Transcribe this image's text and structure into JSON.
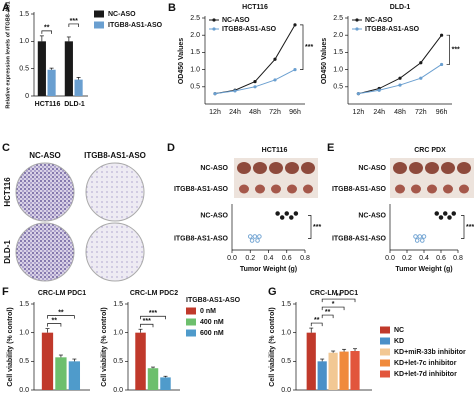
{
  "chart_data": [
    {
      "panel": "A",
      "type": "bar",
      "categories": [
        "HCT116",
        "DLD-1"
      ],
      "series": [
        {
          "name": "NC-ASO",
          "color": "#1a1a1a",
          "values": [
            1.0,
            1.0
          ],
          "errors": [
            0.1,
            0.08
          ]
        },
        {
          "name": "ITGB8-AS1-ASO",
          "color": "#6a9fd0",
          "values": [
            0.48,
            0.3
          ],
          "errors": [
            0.03,
            0.04
          ]
        }
      ],
      "ylabel": "Relative expression levels of ITGB8-AS1",
      "ylim": [
        0,
        1.5
      ],
      "yticks": [
        0,
        0.5,
        {
          "value": 1,
          "label": "1.0"
        },
        1.5
      ],
      "brackets": [
        {
          "from": 0,
          "to": 1,
          "label": "**"
        },
        {
          "from": 2,
          "to": 3,
          "label": "***"
        }
      ],
      "legend": "right"
    },
    {
      "panel": "B",
      "type": "line",
      "title": "HCT116",
      "categories": [
        "12h",
        "24h",
        "48h",
        "72h",
        "96h"
      ],
      "series": [
        {
          "name": "NC-ASO",
          "color": "#1a1a1a",
          "values": [
            0.3,
            0.4,
            0.65,
            1.3,
            2.3
          ]
        },
        {
          "name": "ITGB8-AS1-ASO",
          "color": "#6a9fd0",
          "values": [
            0.3,
            0.38,
            0.5,
            0.7,
            1.0
          ]
        }
      ],
      "ylabel": "OD450 Values",
      "ylim": [
        0,
        2.5
      ],
      "yticks": [
        0.5,
        {
          "value": 1,
          "label": "1.0"
        },
        1.5,
        {
          "value": 2,
          "label": "2.0"
        },
        2.5
      ],
      "annotation": "***",
      "legend": "upper left"
    },
    {
      "type": "line",
      "title": "DLD-1",
      "categories": [
        "12h",
        "24h",
        "48h",
        "72h",
        "96h"
      ],
      "series": [
        {
          "name": "NC-ASO",
          "color": "#1a1a1a",
          "values": [
            0.3,
            0.45,
            0.75,
            1.2,
            2.0
          ]
        },
        {
          "name": "ITGB8-AS1-ASO",
          "color": "#6a9fd0",
          "values": [
            0.3,
            0.4,
            0.55,
            0.75,
            1.15
          ]
        }
      ],
      "ylabel": "OD450 Values",
      "ylim": [
        0,
        2.5
      ],
      "yticks": [
        0.5,
        {
          "value": 1,
          "label": "1.0"
        },
        1.5,
        {
          "value": 2,
          "label": "2.0"
        },
        2.5
      ],
      "annotation": "***",
      "legend": "upper left"
    },
    {
      "panel": "C",
      "type": "image-grid",
      "columns": [
        "NC-ASO",
        "ITGB8-AS1-ASO"
      ],
      "rows": [
        "HCT116",
        "DLD-1"
      ]
    },
    {
      "panel": "D",
      "type": "dot",
      "title": "HCT116",
      "image_labels": [
        "NC-ASO",
        "ITGB8-AS1-ASO"
      ],
      "series": [
        {
          "name": "NC-ASO",
          "color": "#1a1a1a",
          "values": [
            0.5,
            0.55,
            0.6,
            0.65,
            0.7
          ]
        },
        {
          "name": "ITGB8-AS1-ASO",
          "color": "#6a9fd0",
          "values": [
            0.2,
            0.22,
            0.25,
            0.28,
            0.3
          ]
        }
      ],
      "xlabel": "Tumor Weight (g)",
      "xlim": [
        0,
        0.8
      ],
      "xticks": [
        {
          "value": 0,
          "label": "0.0"
        },
        0.2,
        0.4,
        0.6,
        0.8
      ],
      "annotation": "***"
    },
    {
      "panel": "E",
      "type": "dot",
      "title": "CRC PDX",
      "image_labels": [
        "NC-ASO",
        "ITGB8-AS1-ASO"
      ],
      "series": [
        {
          "name": "NC-ASO",
          "color": "#1a1a1a",
          "values": [
            0.55,
            0.6,
            0.65,
            0.7,
            0.75
          ]
        },
        {
          "name": "ITGB8-AS1-ASO",
          "color": "#6a9fd0",
          "values": [
            0.3,
            0.32,
            0.35,
            0.38,
            0.4
          ]
        }
      ],
      "xlabel": "Tumor Weight (g)",
      "xlim": [
        0,
        0.8
      ],
      "xticks": [
        {
          "value": 0,
          "label": "0.0"
        },
        0.2,
        0.4,
        0.6,
        0.8
      ],
      "annotation": "***"
    },
    {
      "panel": "F",
      "type": "bar",
      "title": "CRC-LM PDC1",
      "categories": [
        null
      ],
      "series": [
        {
          "color": "#c0392b",
          "values": [
            1.0
          ],
          "errors": [
            0.07
          ]
        },
        {
          "color": "#6dbf6d",
          "values": [
            0.57
          ],
          "errors": [
            0.04
          ]
        },
        {
          "color": "#4f9bcb",
          "values": [
            0.5
          ],
          "errors": [
            0.04
          ]
        }
      ],
      "ylabel": "Cell viability (% control)",
      "ylim": [
        0,
        1.5
      ],
      "yticks": [
        {
          "value": 0,
          "label": "0.0"
        },
        0.5,
        {
          "value": 1,
          "label": "1.0"
        },
        1.5
      ],
      "brackets": [
        {
          "from": 0,
          "to": 1,
          "label": "**"
        },
        {
          "from": 0,
          "to": 2,
          "label": "**"
        }
      ]
    },
    {
      "type": "bar",
      "title": "CRC-LM PDC2",
      "categories": [
        null
      ],
      "series": [
        {
          "name": "0 nM",
          "color": "#c0392b",
          "values": [
            1.0
          ],
          "errors": [
            0.06
          ]
        },
        {
          "name": "400 nM",
          "color": "#6dbf6d",
          "values": [
            0.38
          ],
          "errors": [
            0.02
          ]
        },
        {
          "name": "600 nM",
          "color": "#4f9bcb",
          "values": [
            0.22
          ],
          "errors": [
            0.02
          ]
        }
      ],
      "ylabel": "Cell viability (% control)",
      "ylim": [
        0,
        1.5
      ],
      "yticks": [
        {
          "value": 0,
          "label": "0.0"
        },
        0.5,
        {
          "value": 1,
          "label": "1.0"
        },
        1.5
      ],
      "brackets": [
        {
          "from": 0,
          "to": 1,
          "label": "***"
        },
        {
          "from": 0,
          "to": 2,
          "label": "***"
        }
      ],
      "legend": "right",
      "legend_title": "ITGB8-AS1-ASO"
    },
    {
      "panel": "G",
      "type": "bar",
      "title": "CRC-LM PDC1",
      "categories": [
        null
      ],
      "series": [
        {
          "name": "NC",
          "color": "#c0392b",
          "values": [
            1.0
          ],
          "errors": [
            0.08
          ]
        },
        {
          "name": "KD",
          "color": "#4a90c8",
          "values": [
            0.5
          ],
          "errors": [
            0.04
          ]
        },
        {
          "name": "KD+miR-33b inhibitor",
          "color": "#f2c894",
          "values": [
            0.65
          ],
          "errors": [
            0.03
          ]
        },
        {
          "name": "KD+let-7c inhibitor",
          "color": "#f08a3c",
          "values": [
            0.67
          ],
          "errors": [
            0.04
          ]
        },
        {
          "name": "KD+let-7d inhibitor",
          "color": "#e2553c",
          "values": [
            0.68
          ],
          "errors": [
            0.04
          ]
        }
      ],
      "ylabel": "Cell viability (% control)",
      "ylim": [
        0,
        1.5
      ],
      "yticks": [
        {
          "value": 0,
          "label": "0.0"
        },
        0.5,
        {
          "value": 1,
          "label": "1.0"
        },
        1.5
      ],
      "brackets": [
        {
          "from": 0,
          "to": 1,
          "label": "**"
        },
        {
          "from": 1,
          "to": 2,
          "label": "**"
        },
        {
          "from": 1,
          "to": 3,
          "label": "*"
        },
        {
          "from": 1,
          "to": 4,
          "label": "**"
        }
      ],
      "legend": "right"
    }
  ]
}
